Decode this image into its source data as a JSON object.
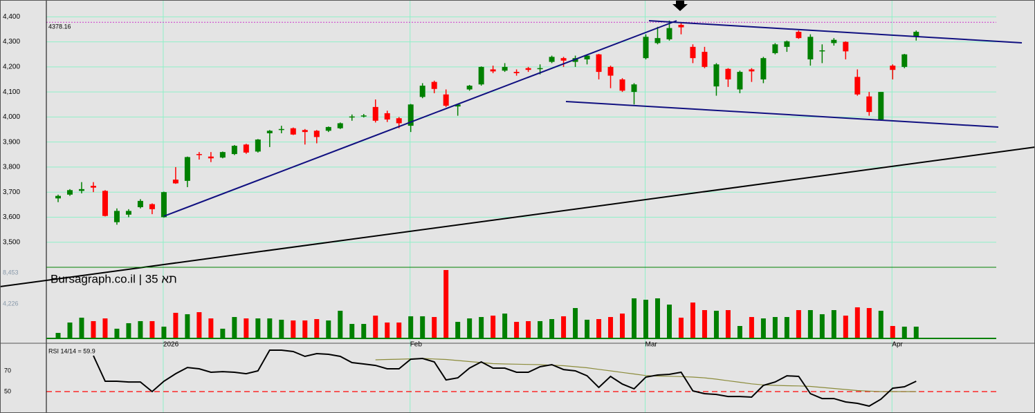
{
  "chart_data": [
    {
      "type": "candlestick",
      "categories": [
        null,
        null,
        null,
        null,
        null,
        null,
        null,
        null,
        null,
        "2026",
        null,
        null,
        null,
        null,
        null,
        null,
        null,
        null,
        null,
        null,
        null,
        null,
        null,
        null,
        null,
        null,
        null,
        null,
        null,
        null,
        "Feb",
        null,
        null,
        null,
        null,
        null,
        null,
        null,
        null,
        null,
        null,
        null,
        null,
        null,
        null,
        null,
        null,
        null,
        null,
        null,
        "Mar",
        null,
        null,
        null,
        null,
        null,
        null,
        null,
        null,
        null,
        null,
        null,
        null,
        null,
        null,
        null,
        null,
        null,
        null,
        null,
        null,
        "Apr",
        null,
        null
      ],
      "open": [
        3675,
        3690,
        3705,
        3725,
        3705,
        3580,
        3610,
        3640,
        3652,
        3600,
        3750,
        3745,
        3852,
        3842,
        3838,
        3852,
        3890,
        3862,
        3935,
        3948,
        3955,
        3948,
        3945,
        3945,
        3955,
        3998,
        4002,
        4040,
        4015,
        3995,
        3965,
        4080,
        4140,
        4090,
        4042,
        4110,
        4130,
        4190,
        4185,
        4180,
        4195,
        4192,
        4220,
        4235,
        4220,
        4230,
        4250,
        4200,
        4150,
        4100,
        4235,
        4295,
        4310,
        4368,
        4280,
        4260,
        4122,
        4192,
        4110,
        4190,
        4150,
        4255,
        4280,
        4340,
        4230,
        4262,
        4295,
        4300,
        4160,
        4082,
        3990,
        4205,
        4200,
        4322
      ],
      "high": [
        3690,
        3712,
        3740,
        3740,
        3708,
        3635,
        3632,
        3672,
        3655,
        3702,
        3800,
        3842,
        3860,
        3860,
        3862,
        3888,
        3893,
        3912,
        3948,
        3965,
        3958,
        3952,
        3948,
        3962,
        3978,
        4010,
        4012,
        4070,
        4025,
        4000,
        4052,
        4135,
        4145,
        4110,
        4052,
        4128,
        4202,
        4205,
        4215,
        4190,
        4200,
        4210,
        4245,
        4240,
        4245,
        4248,
        4252,
        4205,
        4155,
        4135,
        4330,
        4360,
        4385,
        4378,
        4290,
        4280,
        4215,
        4195,
        4185,
        4195,
        4240,
        4295,
        4305,
        4345,
        4330,
        4290,
        4315,
        4302,
        4190,
        4100,
        4100,
        4210,
        4252,
        4345
      ],
      "low": [
        3660,
        3685,
        3695,
        3700,
        3603,
        3570,
        3600,
        3635,
        3612,
        3598,
        3733,
        3720,
        3830,
        3820,
        3835,
        3848,
        3853,
        3858,
        3880,
        3935,
        3928,
        3890,
        3895,
        3940,
        3952,
        3985,
        3998,
        3978,
        3980,
        3955,
        3940,
        4075,
        4095,
        4040,
        4005,
        4105,
        4125,
        4175,
        4180,
        4165,
        4180,
        4170,
        4215,
        4200,
        4200,
        4210,
        4150,
        4115,
        4100,
        4050,
        4230,
        4290,
        4305,
        4330,
        4215,
        4195,
        4085,
        4120,
        4095,
        4140,
        4135,
        4250,
        4260,
        4312,
        4205,
        4215,
        4285,
        4230,
        4085,
        4005,
        3985,
        4150,
        4195,
        4305
      ],
      "close": [
        3685,
        3708,
        3712,
        3718,
        3605,
        3625,
        3625,
        3665,
        3632,
        3700,
        3735,
        3840,
        3848,
        3835,
        3860,
        3885,
        3858,
        3910,
        3945,
        3952,
        3930,
        3940,
        3920,
        3960,
        3975,
        4002,
        4006,
        3985,
        3990,
        3975,
        4050,
        4125,
        4112,
        4045,
        4050,
        4125,
        4200,
        4182,
        4200,
        4175,
        4188,
        4195,
        4240,
        4225,
        4235,
        4245,
        4180,
        4165,
        4105,
        4130,
        4320,
        4315,
        4355,
        4358,
        4235,
        4200,
        4210,
        4150,
        4180,
        4182,
        4235,
        4290,
        4302,
        4315,
        4320,
        4266,
        4308,
        4262,
        4090,
        4020,
        4100,
        4188,
        4250,
        4340
      ],
      "up_color": "#008000",
      "down_color": "#ff0000",
      "ylim": [
        3400,
        4445
      ],
      "yticks": [
        {
          "value": 3500,
          "label": "3,500"
        },
        {
          "value": 3600,
          "label": "3,600"
        },
        {
          "value": 3700,
          "label": "3,700"
        },
        {
          "value": 3800,
          "label": "3,800"
        },
        {
          "value": 3900,
          "label": "3,900"
        },
        {
          "value": 4000,
          "label": "4,000"
        },
        {
          "value": 4100,
          "label": "4,100"
        },
        {
          "value": 4200,
          "label": "4,200"
        },
        {
          "value": 4300,
          "label": "4,300"
        },
        {
          "value": 4400,
          "label": "4,400"
        }
      ],
      "price_line": 4378.16,
      "price_line_color": "#cc33cc",
      "grid": true
    },
    {
      "type": "bar",
      "title": "Bursagraph.co.il | תא 35",
      "values": [
        750,
        2160,
        2820,
        2350,
        2720,
        1320,
        2070,
        2350,
        2350,
        1600,
        3480,
        3290,
        3570,
        2720,
        1320,
        2910,
        2720,
        2720,
        2720,
        2540,
        2440,
        2440,
        2630,
        2440,
        3760,
        1970,
        1970,
        3100,
        2160,
        2160,
        3010,
        3010,
        2910,
        9300,
        2250,
        2720,
        2910,
        3100,
        3380,
        2250,
        2350,
        2350,
        2630,
        3010,
        4130,
        2540,
        2630,
        2910,
        3380,
        5450,
        5260,
        5450,
        4600,
        2820,
        4880,
        3850,
        3760,
        3850,
        1690,
        2910,
        2720,
        2910,
        2910,
        3850,
        3850,
        3290,
        3850,
        3100,
        4230,
        4130,
        3760,
        1690,
        1600,
        1600
      ],
      "ylim": [
        0,
        9674
      ],
      "yticks": [
        {
          "value": 4226,
          "label": "4,226"
        },
        {
          "value": 8453,
          "label": "8,453"
        }
      ]
    },
    {
      "type": "line",
      "title": "RSI 14/14 = 59.9",
      "series": [
        {
          "color": "#000000",
          "values": [
            null,
            null,
            null,
            84.7,
            60,
            60,
            59.3,
            59.3,
            50,
            60,
            67.3,
            73.3,
            72,
            68.7,
            69.3,
            68.7,
            67.3,
            70,
            90,
            90,
            88.7,
            84,
            86.7,
            86,
            84,
            78,
            76.7,
            75.3,
            72,
            72,
            81.3,
            82,
            78.7,
            61.3,
            63.3,
            72.7,
            78.7,
            72.7,
            72.7,
            68.7,
            68.7,
            74,
            76,
            71.3,
            70,
            65.3,
            54,
            64.7,
            57.3,
            52.7,
            64,
            66,
            66.7,
            68.7,
            50.7,
            48,
            47.3,
            45.3,
            45.3,
            44.7,
            56,
            59.3,
            65.3,
            64.7,
            48,
            43.3,
            43.3,
            40,
            38.7,
            36,
            42.7,
            53.3,
            54.7,
            60
          ]
        },
        {
          "color": "#8b8b3a",
          "values": [
            null,
            null,
            null,
            null,
            null,
            null,
            null,
            null,
            null,
            null,
            null,
            null,
            null,
            null,
            null,
            null,
            null,
            null,
            null,
            null,
            null,
            null,
            null,
            null,
            null,
            null,
            null,
            80.7,
            81,
            81.3,
            81.6,
            82,
            81.5,
            81,
            80,
            79,
            78,
            77,
            76.7,
            76.5,
            76.2,
            76,
            75.5,
            75,
            74,
            73,
            71.5,
            70,
            68.5,
            67,
            65.5,
            65,
            64.8,
            64.5,
            64,
            63.3,
            62,
            60.5,
            59,
            57.5,
            56.5,
            56,
            55.7,
            55.5,
            55,
            54,
            53,
            52,
            51,
            50.5,
            50,
            50,
            50,
            50
          ]
        }
      ],
      "reference_line": 50,
      "reference_color": "#ff0000",
      "ylim": [
        30,
        94.7
      ],
      "yticks": [
        50,
        70
      ]
    }
  ]
}
